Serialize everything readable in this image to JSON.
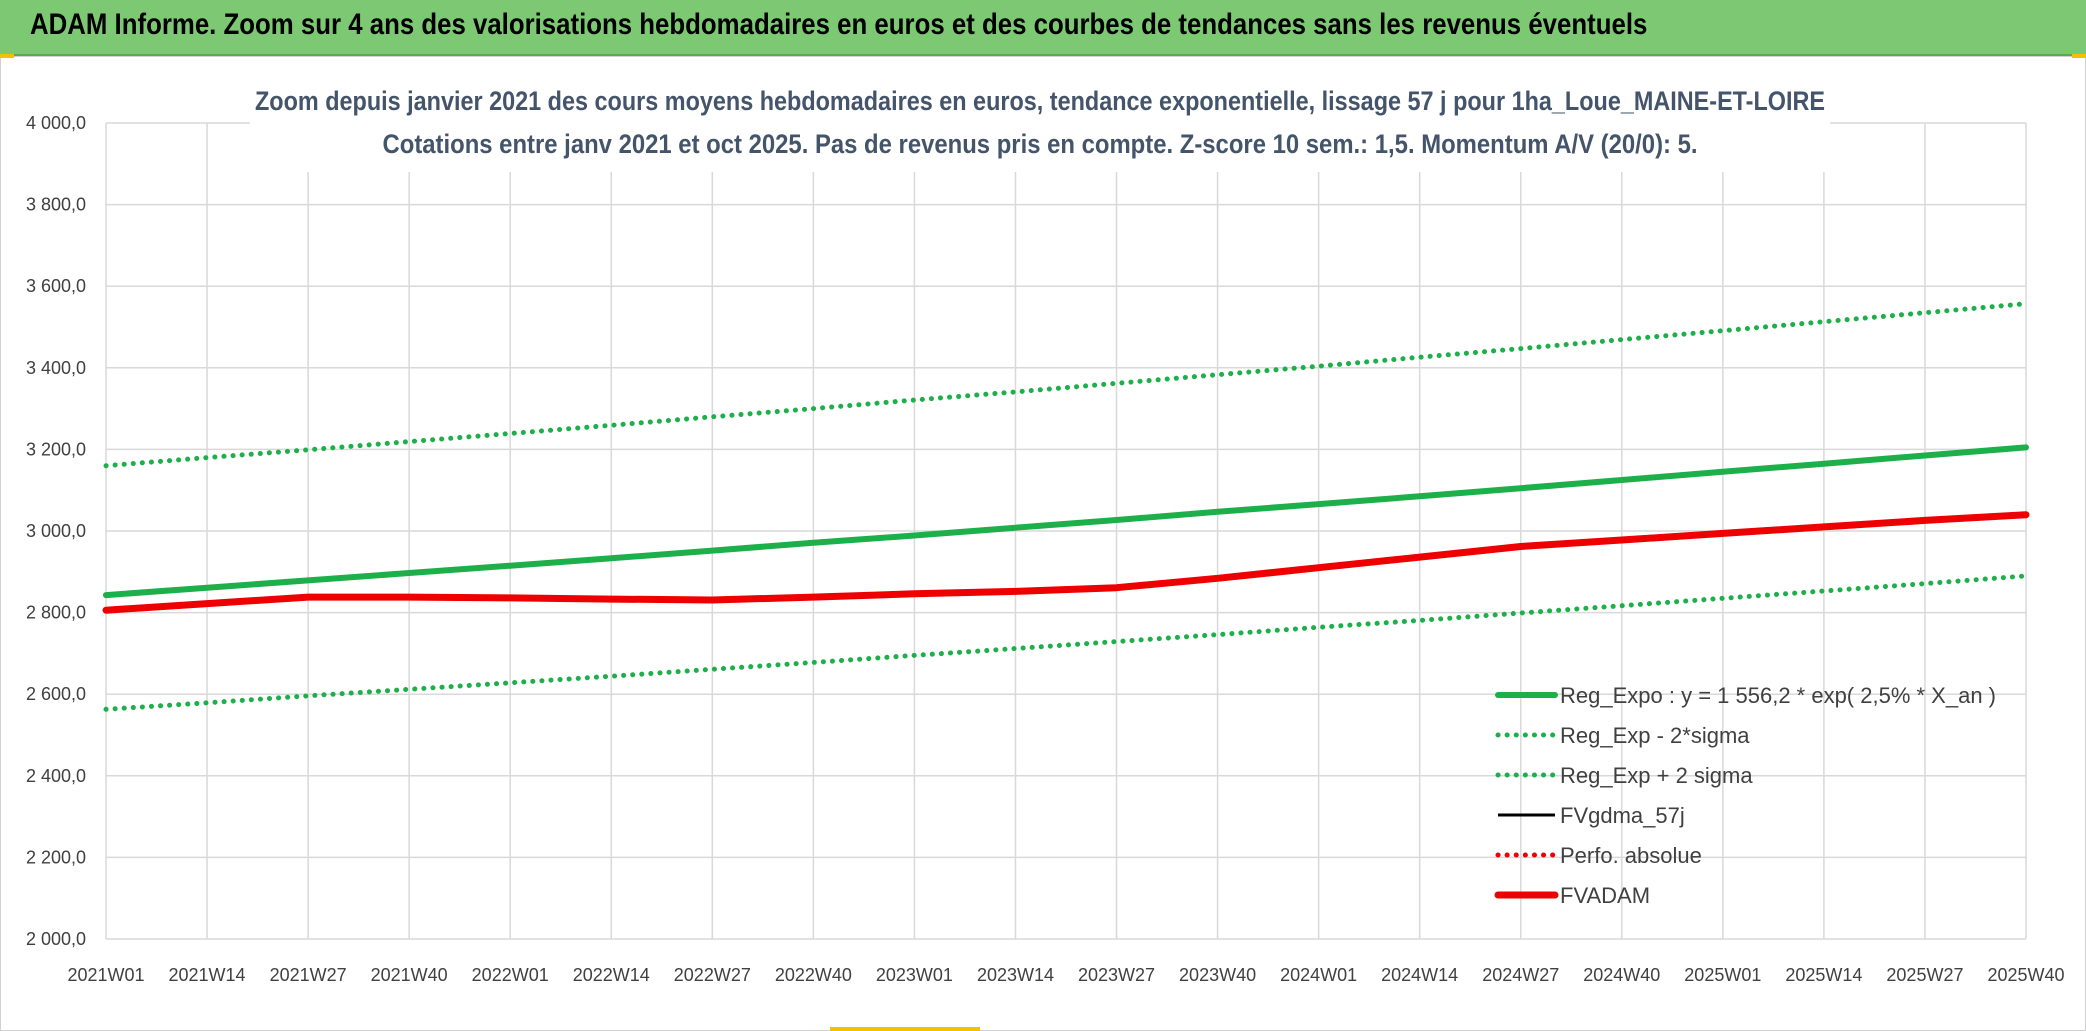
{
  "banner": {
    "title": "ADAM Informe. Zoom sur 4 ans des valorisations hebdomadaires en euros et des courbes de tendances sans les revenus éventuels"
  },
  "colors": {
    "banner": "#7dc873",
    "trend": "#1db04a",
    "fvadam": "#ee0000",
    "fvgdma": "#000000",
    "perfo": "#ee0000",
    "grid": "#d9d9d9",
    "title_text": "#44546a"
  },
  "chart_data": {
    "type": "line",
    "title": [
      "Zoom depuis janvier 2021 des cours moyens hebdomadaires en euros, tendance exponentielle, lissage 57 j pour 1ha_Loue_MAINE-ET-LOIRE",
      "Cotations entre janv 2021 et oct 2025. Pas de revenus pris en compte. Z-score 10 sem.: 1,5. Momentum A/V (20/0): 5."
    ],
    "xlabel": "",
    "ylabel": "",
    "ylim": [
      2000,
      4000
    ],
    "y_ticks": [
      "4 000,0",
      "3 800,0",
      "3 600,0",
      "3 400,0",
      "3 200,0",
      "3 000,0",
      "2 800,0",
      "2 600,0",
      "2 400,0",
      "2 200,0",
      "2 000,0"
    ],
    "y_tick_values": [
      4000,
      3800,
      3600,
      3400,
      3200,
      3000,
      2800,
      2600,
      2400,
      2200,
      2000
    ],
    "x_ticks": [
      "2021W01",
      "2021W14",
      "2021W27",
      "2021W40",
      "2022W01",
      "2022W14",
      "2022W27",
      "2022W40",
      "2023W01",
      "2023W14",
      "2023W27",
      "2023W40",
      "2024W01",
      "2024W14",
      "2024W27",
      "2024W40",
      "2025W01",
      "2025W14",
      "2025W27",
      "2025W40"
    ],
    "grid": true,
    "legend_position": "bottom-right",
    "series": [
      {
        "name": "Reg_Expo : y = 1 556,2 * exp( 2,5% *  X_an )",
        "style": "solid-thick",
        "color": "#1db04a",
        "values": [
          2843,
          2861,
          2879,
          2897,
          2915,
          2933,
          2952,
          2971,
          2989,
          3008,
          3027,
          3047,
          3066,
          3085,
          3105,
          3125,
          3145,
          3165,
          3185,
          3205
        ]
      },
      {
        "name": "Reg_Exp - 2*sigma",
        "style": "dotted",
        "color": "#1db04a",
        "values": [
          2563,
          2579,
          2596,
          2612,
          2628,
          2644,
          2661,
          2678,
          2695,
          2712,
          2729,
          2746,
          2764,
          2781,
          2799,
          2817,
          2835,
          2853,
          2871,
          2890
        ]
      },
      {
        "name": "Reg_Exp + 2 sigma",
        "style": "dotted",
        "color": "#1db04a",
        "values": [
          3160,
          3180,
          3199,
          3219,
          3239,
          3259,
          3280,
          3300,
          3321,
          3341,
          3362,
          3383,
          3404,
          3426,
          3447,
          3469,
          3491,
          3513,
          3535,
          3557
        ]
      },
      {
        "name": "FVgdma_57j",
        "style": "solid",
        "color": "#000000",
        "values": [
          2806,
          2822,
          2837,
          2838,
          2836,
          2834,
          2832,
          2838,
          2846,
          2852,
          2862,
          2884,
          2910,
          2936,
          2962,
          2978,
          2994,
          3010,
          3026,
          3040
        ]
      },
      {
        "name": "Perfo. absolue",
        "style": "dotted",
        "color": "#ee0000",
        "values": []
      },
      {
        "name": "FVADAM",
        "style": "solid-thick",
        "color": "#ee0000",
        "values": [
          2806,
          2822,
          2838,
          2838,
          2836,
          2833,
          2831,
          2838,
          2846,
          2852,
          2861,
          2884,
          2910,
          2936,
          2962,
          2978,
          2994,
          3010,
          3026,
          3040
        ]
      }
    ]
  }
}
